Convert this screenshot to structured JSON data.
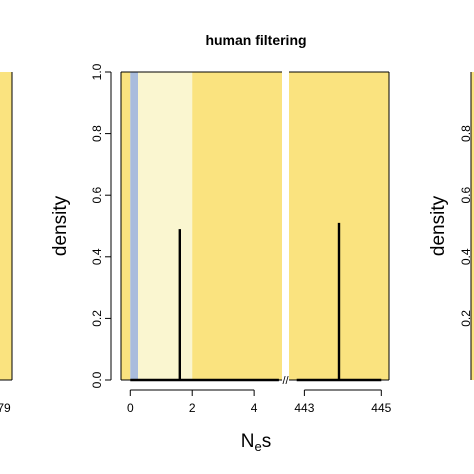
{
  "chart_data": {
    "type": "line",
    "title": "human filtering",
    "xlabel_main": "N",
    "xlabel_sub": "e",
    "xlabel_tail": "s",
    "ylabel": "density",
    "ylim": [
      0,
      1.0
    ],
    "y_ticks": [
      "0.0",
      "0.2",
      "0.4",
      "0.6",
      "0.8",
      "1.0"
    ],
    "y_tick_values": [
      0,
      0.2,
      0.4,
      0.6,
      0.8,
      1.0
    ],
    "x_segments": [
      {
        "xlim": [
          -0.3,
          4.9
        ],
        "ticks": [
          "0",
          "2",
          "4"
        ],
        "tick_values": [
          0,
          2,
          4
        ]
      },
      {
        "xlim": [
          442.6,
          445.2
        ],
        "ticks": [
          "443",
          "445"
        ],
        "tick_values": [
          443,
          445
        ]
      }
    ],
    "axis_break": "//",
    "bands": [
      {
        "from": -0.3,
        "to": 0.0,
        "color": "#fae37f",
        "segment": 0
      },
      {
        "from": 0.0,
        "to": 0.25,
        "color": "#a9bcdd",
        "segment": 0
      },
      {
        "from": 0.25,
        "to": 2.0,
        "color": "#faf6d0",
        "segment": 0
      },
      {
        "from": 2.0,
        "to": 4.9,
        "color": "#fae37f",
        "segment": 0
      },
      {
        "from": 442.6,
        "to": 445.2,
        "color": "#fae37f",
        "segment": 1
      }
    ],
    "series": [
      {
        "segment": 0,
        "x": [
          0,
          1.6,
          1.6,
          1.6,
          4.8
        ],
        "y": [
          0,
          0,
          0.49,
          0,
          0
        ]
      },
      {
        "segment": 1,
        "x": [
          442.8,
          443.9,
          443.9,
          443.9,
          445.0
        ],
        "y": [
          0,
          0,
          0.51,
          0,
          0
        ]
      }
    ],
    "side_panels": {
      "left": {
        "x_tick_partial": "79"
      },
      "right": {
        "ylabel": "density",
        "y_ticks_partial": [
          "0.2",
          "0.4",
          "0.6",
          "0.8"
        ]
      }
    },
    "colors": {
      "band_dark": "#fae37f",
      "band_light": "#faf6d0",
      "band_blue": "#a9bcdd",
      "line": "#000000"
    }
  }
}
